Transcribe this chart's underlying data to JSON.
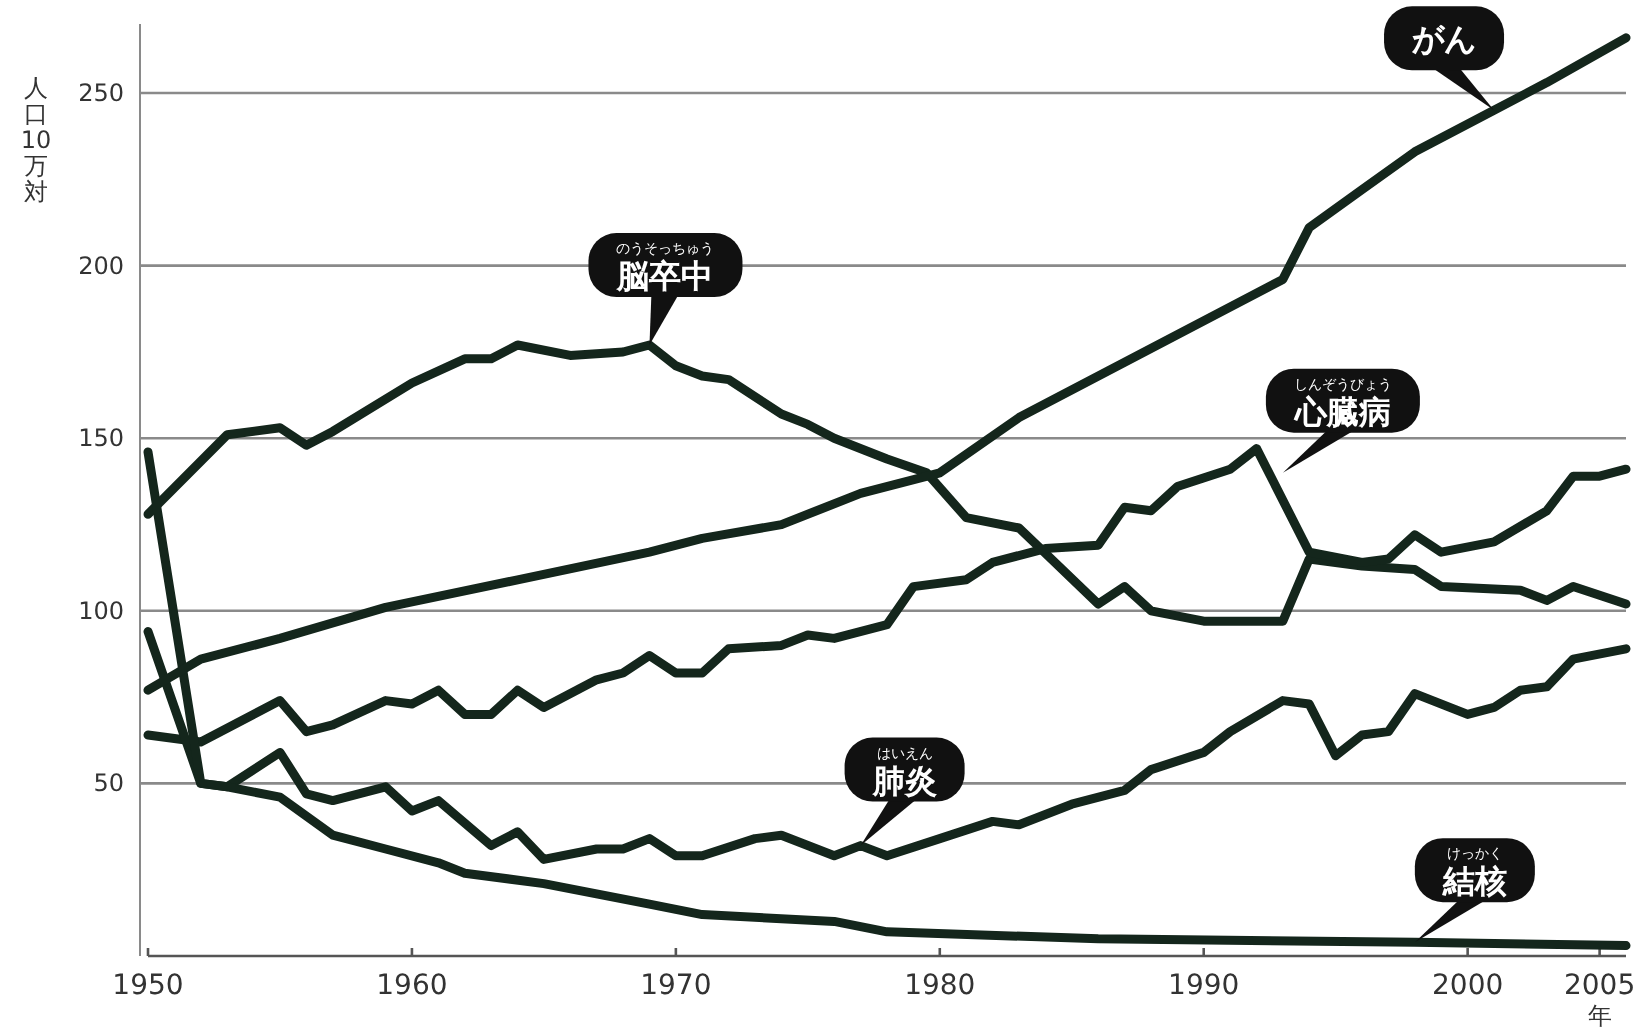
{
  "chart_data": {
    "type": "line",
    "ylabel": "人口10万対",
    "xlabel": "年",
    "xlim": [
      1950,
      2006
    ],
    "ylim": [
      0,
      270
    ],
    "xticks": [
      1950,
      1960,
      1970,
      1980,
      1990,
      2000,
      2005
    ],
    "yticks": [
      50,
      100,
      150,
      200,
      250
    ],
    "grid": "y",
    "marker": "none",
    "line_style": "solid",
    "series": [
      {
        "color": "#14261c",
        "x": [
          1950,
          1953,
          1955,
          1956,
          1957,
          1960,
          1962,
          1963,
          1964,
          1966,
          1968,
          1969,
          1970,
          1971,
          1972,
          1974,
          1975,
          1976,
          1978,
          1979.5,
          1981,
          1983,
          1986,
          1987,
          1988,
          1990,
          1993,
          1994,
          1996,
          1998,
          1999,
          2002,
          2003,
          2004,
          2006
        ],
        "values": [
          128,
          151,
          153,
          148,
          152,
          166,
          173,
          173,
          177,
          174,
          175,
          177,
          171,
          168,
          167,
          157,
          154,
          150,
          144,
          140,
          127,
          124,
          102,
          107,
          100,
          97,
          97,
          115,
          113,
          112,
          107,
          106,
          103,
          107,
          102
        ]
      },
      {
        "color": "#14261c",
        "x": [
          1950,
          1952,
          1955,
          1956,
          1957,
          1959,
          1960,
          1961,
          1962,
          1963,
          1964,
          1965,
          1967,
          1968,
          1969,
          1970,
          1971,
          1972,
          1974,
          1975,
          1976,
          1978,
          1979,
          1981,
          1982,
          1984,
          1986,
          1987,
          1988,
          1989,
          1991,
          1992,
          1994,
          1996,
          1997,
          1998,
          1999,
          2001,
          2003,
          2004,
          2005,
          2006
        ],
        "values": [
          64,
          62,
          74,
          65,
          67,
          74,
          73,
          77,
          70,
          70,
          77,
          72,
          80,
          82,
          87,
          82,
          82,
          89,
          90,
          93,
          92,
          96,
          107,
          109,
          114,
          118,
          119,
          130,
          129,
          136,
          141,
          147,
          117,
          114,
          115,
          122,
          117,
          120,
          129,
          139,
          139,
          141
        ]
      },
      {
        "color": "#14261c",
        "x": [
          1950,
          1952,
          1953,
          1955,
          1956,
          1957,
          1959,
          1960,
          1961,
          1963,
          1964,
          1965,
          1967,
          1968,
          1969,
          1970,
          1971,
          1973,
          1974,
          1976,
          1977,
          1978,
          1980,
          1982,
          1983,
          1985,
          1987,
          1988,
          1990,
          1991,
          1993,
          1994,
          1995,
          1996,
          1997,
          1998,
          2000,
          2001,
          2002,
          2003,
          2004,
          2006
        ],
        "values": [
          94,
          50,
          49,
          59,
          47,
          45,
          49,
          42,
          45,
          32,
          36,
          28,
          31,
          31,
          34,
          29,
          29,
          34,
          35,
          29,
          32,
          29,
          34,
          39,
          38,
          44,
          48,
          54,
          59,
          65,
          74,
          73,
          58,
          64,
          65,
          76,
          70,
          72,
          77,
          78,
          86,
          89
        ]
      },
      {
        "color": "#14261c",
        "x": [
          1950,
          1952,
          1953,
          1955,
          1957,
          1959,
          1961,
          1962,
          1965,
          1967,
          1969,
          1971,
          1976,
          1978,
          1986,
          1998,
          2006
        ],
        "values": [
          146,
          50,
          49,
          46,
          35,
          31,
          27,
          24,
          21,
          18,
          15,
          12,
          10,
          7,
          5,
          4,
          3
        ]
      },
      {
        "color": "#14261c",
        "x": [
          1950,
          1952,
          1955,
          1959,
          1964,
          1969,
          1971,
          1974,
          1977,
          1980,
          1983,
          1987,
          1991,
          1993,
          1994,
          1996,
          1998,
          2001,
          2003,
          2006
        ],
        "values": [
          77,
          86,
          92,
          101,
          109,
          117,
          121,
          125,
          134,
          140,
          156,
          172,
          188,
          196,
          211,
          222,
          233,
          245,
          253,
          266
        ]
      }
    ],
    "annotations": [
      {
        "text": "のうそっちゅう脳卒中",
        "x": 1969,
        "y": 177
      },
      {
        "text": "しんぞうびょう心臓病",
        "x": 1993,
        "y": 140
      },
      {
        "text": "はいえん肺炎",
        "x": 1977,
        "y": 32
      },
      {
        "text": "けっかく結核",
        "x": 1998,
        "y": 4
      },
      {
        "text": "がん",
        "x": 2001,
        "y": 245
      }
    ]
  }
}
